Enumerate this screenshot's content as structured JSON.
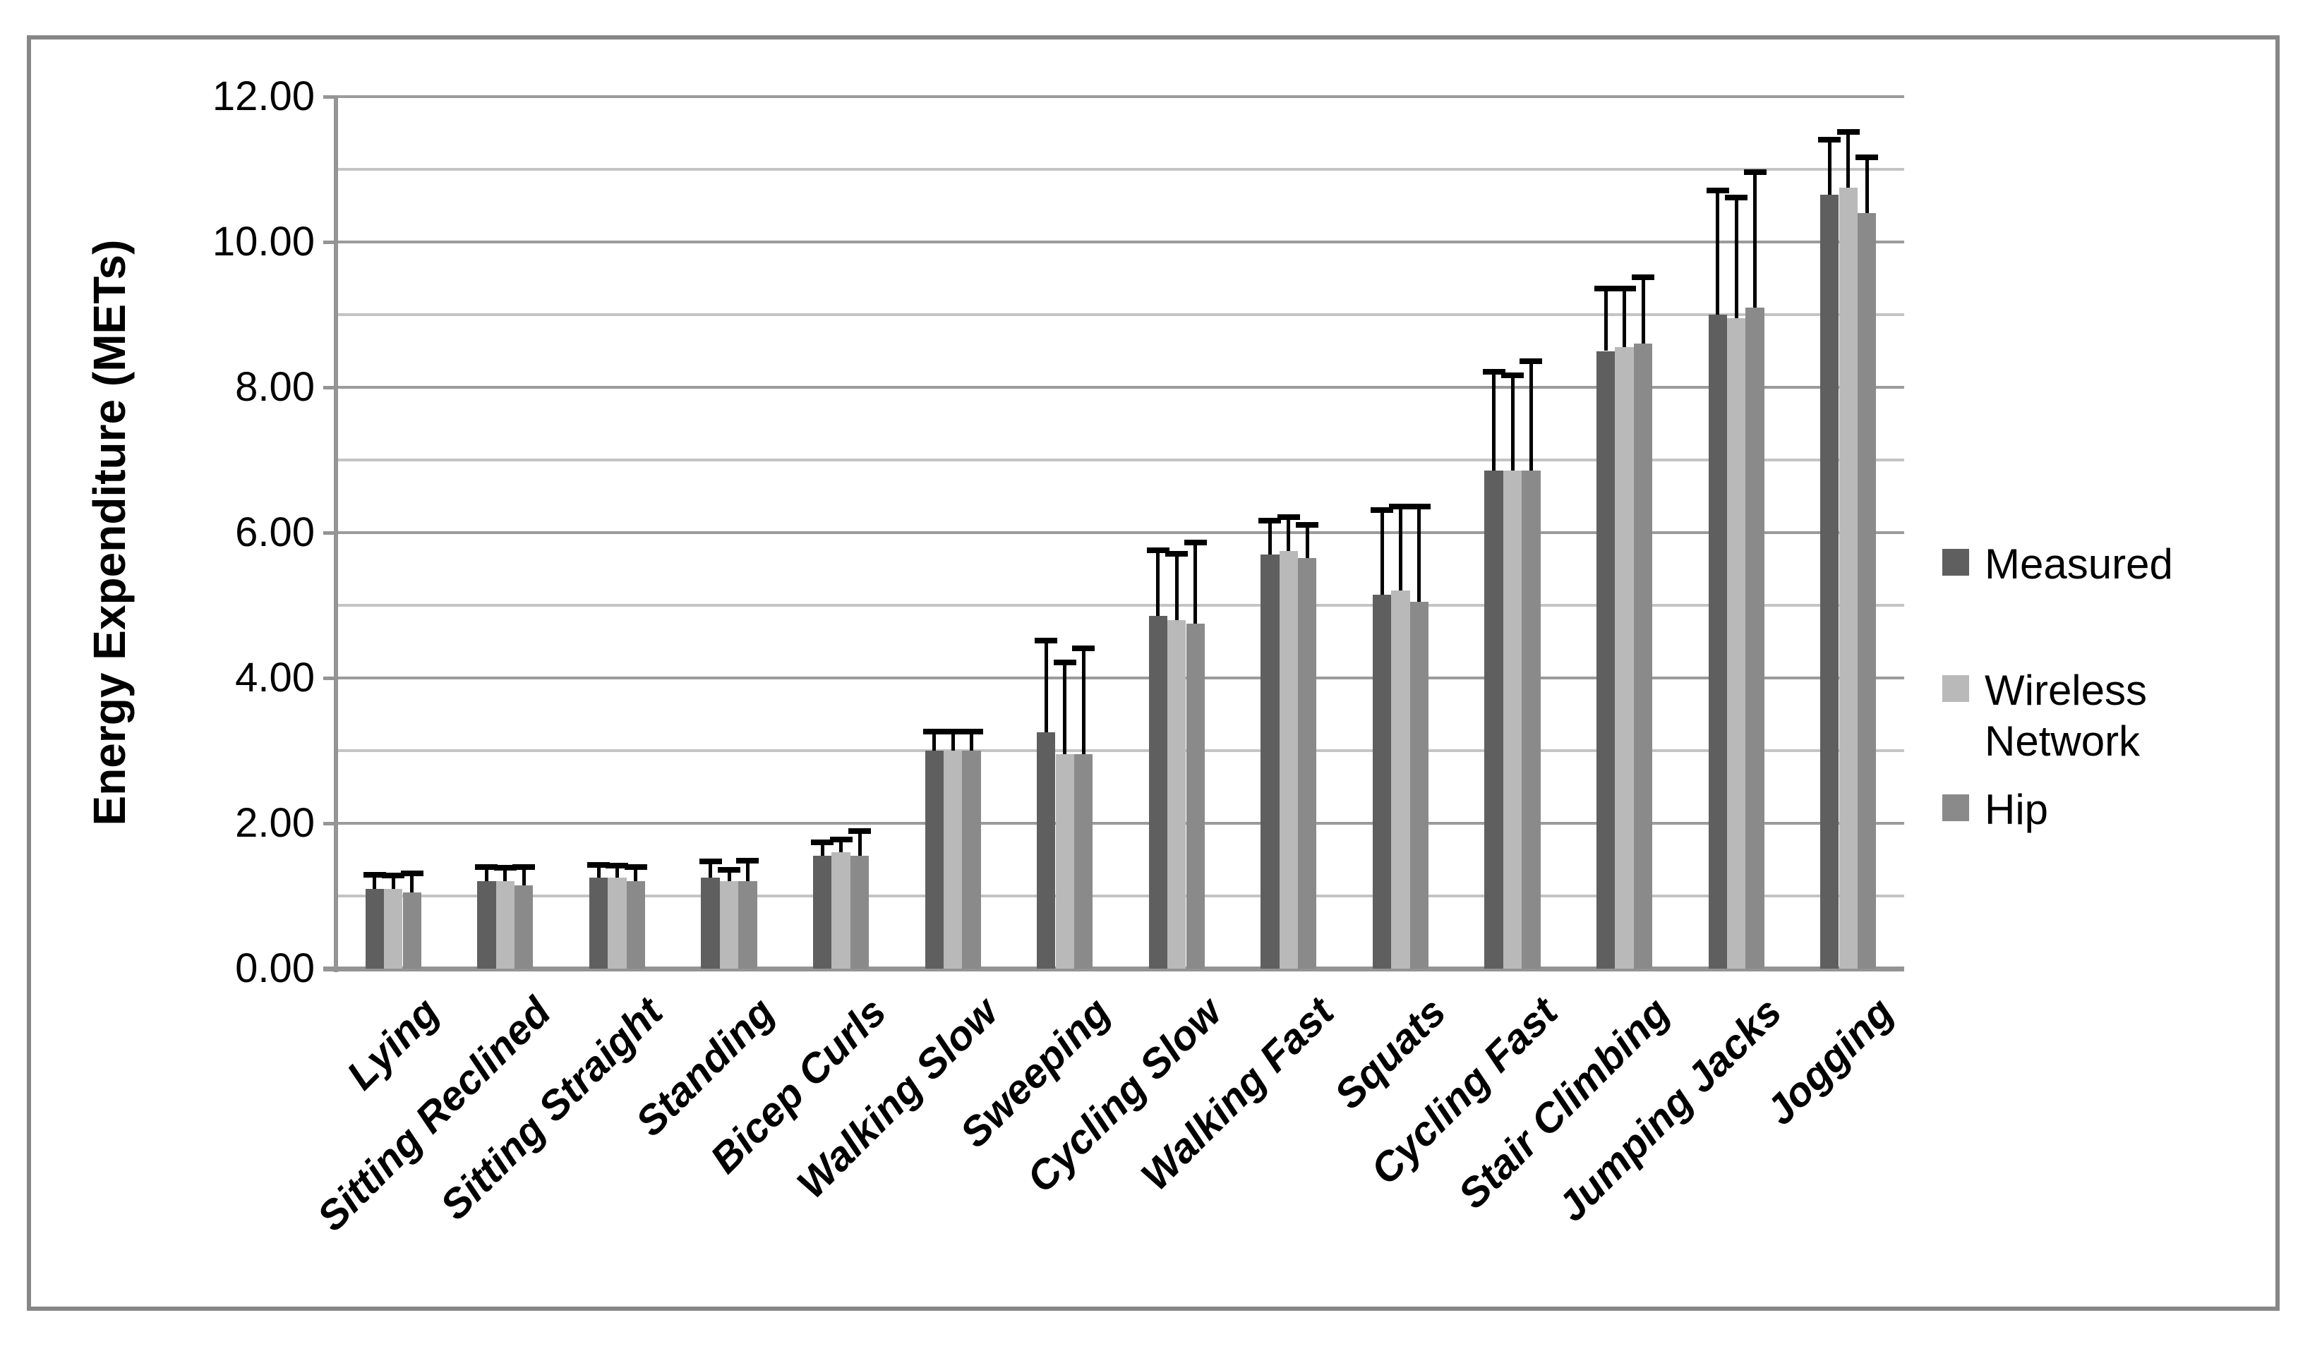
{
  "figure": {
    "y_axis_title": "Energy Expenditure (METs)"
  },
  "legend": {
    "position": "right",
    "items": [
      {
        "id": "measured",
        "label": "Measured",
        "color": "#5F5F5F"
      },
      {
        "id": "wireless-network",
        "label": "Wireless Network",
        "color": "#B9B9B9"
      },
      {
        "id": "hip",
        "label": "Hip",
        "color": "#8A8A8A"
      }
    ]
  },
  "chart_data": {
    "type": "bar",
    "title": "",
    "xlabel": "",
    "ylabel": "Energy Expenditure (METs)",
    "ylim": [
      0,
      12
    ],
    "y_major_step": 2,
    "y_minor_step": 1,
    "y_tick_labels": [
      "0.00",
      "2.00",
      "4.00",
      "6.00",
      "8.00",
      "10.00",
      "12.00"
    ],
    "grid": true,
    "legend_position": "right",
    "categories": [
      "Lying",
      "Sitting Reclined",
      "Sitting Straight",
      "Standing",
      "Bicep Curls",
      "Walking Slow",
      "Sweeping",
      "Cycling Slow",
      "Walking Fast",
      "Squats",
      "Cycling Fast",
      "Stair Climbing",
      "Jumping Jacks",
      "Jogging"
    ],
    "series": [
      {
        "name": "Measured",
        "color": "#5F5F5F",
        "values": [
          1.1,
          1.2,
          1.25,
          1.25,
          1.55,
          3.0,
          3.25,
          4.85,
          5.7,
          5.15,
          6.85,
          8.5,
          9.0,
          10.65
        ],
        "error_plus": [
          0.23,
          0.24,
          0.22,
          0.26,
          0.23,
          0.3,
          1.3,
          0.95,
          0.5,
          1.2,
          1.4,
          0.9,
          1.75,
          0.8
        ]
      },
      {
        "name": "Wireless Network",
        "color": "#B9B9B9",
        "values": [
          1.1,
          1.2,
          1.25,
          1.2,
          1.6,
          3.0,
          2.95,
          4.8,
          5.75,
          5.2,
          6.85,
          8.55,
          8.95,
          10.75
        ],
        "error_plus": [
          0.22,
          0.23,
          0.21,
          0.2,
          0.22,
          0.3,
          1.3,
          0.95,
          0.5,
          1.2,
          1.35,
          0.85,
          1.7,
          0.8
        ]
      },
      {
        "name": "Hip",
        "color": "#8A8A8A",
        "values": [
          1.05,
          1.15,
          1.2,
          1.2,
          1.55,
          3.0,
          2.95,
          4.75,
          5.65,
          5.05,
          6.85,
          8.6,
          9.1,
          10.4
        ],
        "error_plus": [
          0.3,
          0.29,
          0.24,
          0.32,
          0.38,
          0.3,
          1.5,
          1.15,
          0.5,
          1.35,
          1.55,
          0.95,
          1.9,
          0.8
        ]
      }
    ],
    "error_bar_color": "#000000",
    "colors": {
      "major_grid": "#9B9B9B",
      "minor_grid": "#C4C4C4",
      "axis": "#949494",
      "figure_border": "#878787",
      "text": "#000000",
      "background": "#FFFFFF"
    }
  }
}
